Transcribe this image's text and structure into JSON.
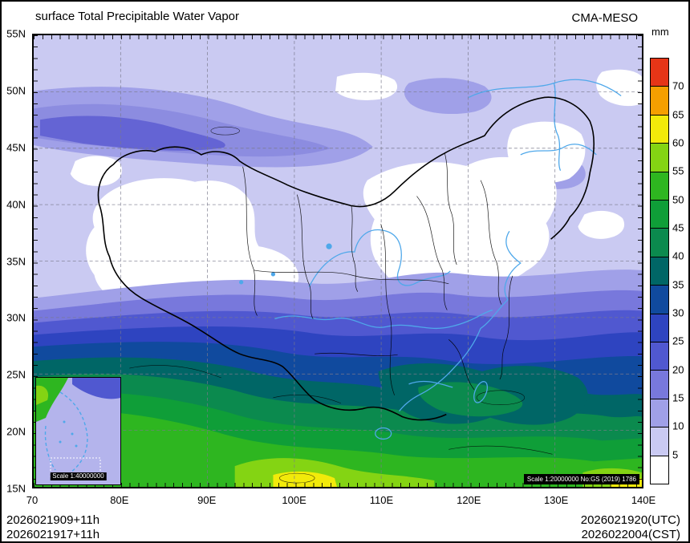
{
  "header": {
    "title": "surface Total Precipitable Water Vapor",
    "model": "CMA-MESO"
  },
  "colorbar": {
    "unit": "mm",
    "labels_top_to_bottom": [
      "70",
      "65",
      "60",
      "55",
      "50",
      "45",
      "40",
      "35",
      "30",
      "25",
      "20",
      "15",
      "10",
      "5"
    ],
    "colors_top_to_bottom": [
      "#e63517",
      "#f59f00",
      "#f2ea0a",
      "#84d413",
      "#2eb620",
      "#0f9e38",
      "#0b8a4e",
      "#006666",
      "#104a9e",
      "#2e44c0",
      "#5058d0",
      "#7878dc",
      "#a0a0e8",
      "#cacaf2",
      "#ffffff"
    ]
  },
  "axes": {
    "lat_labels": [
      "55N",
      "50N",
      "45N",
      "40N",
      "35N",
      "30N",
      "25N",
      "20N",
      "15N"
    ],
    "lon_labels": [
      "70",
      "80E",
      "90E",
      "100E",
      "110E",
      "120E",
      "130E",
      "140E"
    ]
  },
  "inset": {
    "scale_label": "Scale 1:40000000"
  },
  "map_note": "Scale 1:20000000 No:GS (2019) 1786",
  "footer": {
    "init_utc": "2026021909+11h",
    "init_cst": "2026021917+11h",
    "valid_utc": "2026021920(UTC)",
    "valid_cst": "2026022004(CST)"
  }
}
